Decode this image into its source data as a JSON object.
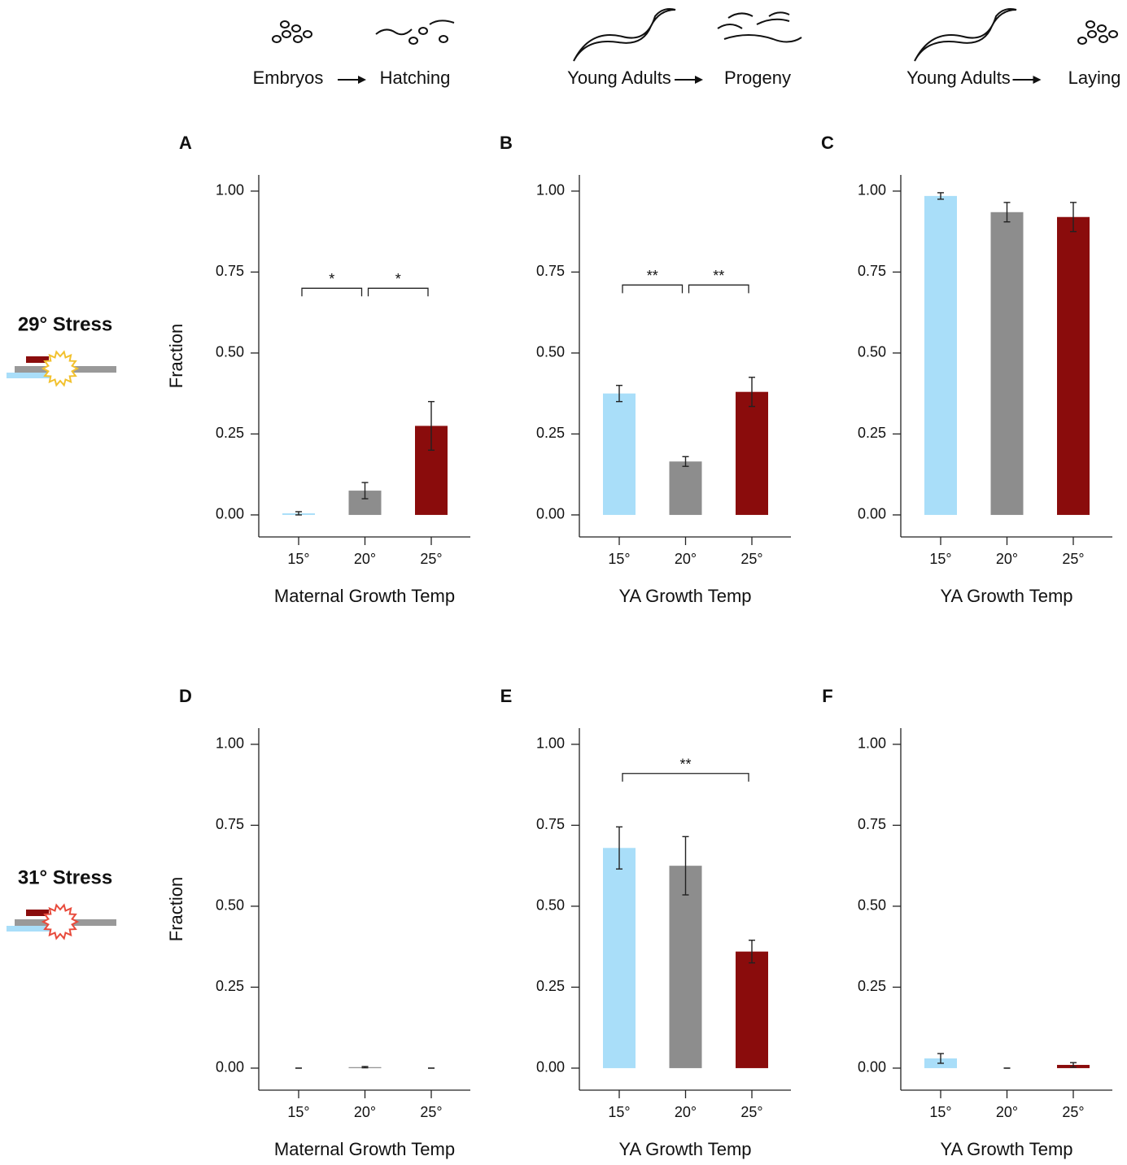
{
  "header": [
    {
      "from": "Embryos",
      "to": "Hatching"
    },
    {
      "from": "Young Adults",
      "to": "Progeny"
    },
    {
      "from": "Young Adults",
      "to": "Laying"
    }
  ],
  "rows": [
    {
      "label": "29° Stress"
    },
    {
      "label": "31° Stress"
    }
  ],
  "chart_data": [
    {
      "type": "bar",
      "title": "A",
      "categories": [
        "15°",
        "20°",
        "25°"
      ],
      "values": [
        0.005,
        0.075,
        0.275
      ],
      "errors": [
        0.005,
        0.025,
        0.075
      ],
      "colors": [
        "#a9def9",
        "#8d8d8d",
        "#8a0c0c"
      ],
      "ylim": [
        -0.068,
        1.05
      ],
      "yticks": [
        {
          "value": 0,
          "label": "0.00"
        },
        {
          "value": 0.25,
          "label": "0.25"
        },
        {
          "value": 0.5,
          "label": "0.50"
        },
        {
          "value": 0.75,
          "label": "0.75"
        },
        {
          "value": 1,
          "label": "1.00"
        }
      ],
      "y_label": "Fraction",
      "x_label": "Maternal Growth Temp",
      "annotations": [
        {
          "label": "*",
          "from": 0,
          "to": 1,
          "y": 0.7
        },
        {
          "label": "*",
          "from": 1,
          "to": 2,
          "y": 0.7
        }
      ]
    },
    {
      "type": "bar",
      "title": "B",
      "categories": [
        "15°",
        "20°",
        "25°"
      ],
      "values": [
        0.375,
        0.165,
        0.38
      ],
      "errors": [
        0.025,
        0.015,
        0.045
      ],
      "colors": [
        "#a9def9",
        "#8d8d8d",
        "#8a0c0c"
      ],
      "ylim": [
        -0.068,
        1.05
      ],
      "yticks": [
        {
          "value": 0,
          "label": "0.00"
        },
        {
          "value": 0.25,
          "label": "0.25"
        },
        {
          "value": 0.5,
          "label": "0.50"
        },
        {
          "value": 0.75,
          "label": "0.75"
        },
        {
          "value": 1,
          "label": "1.00"
        }
      ],
      "x_label": "YA Growth Temp",
      "annotations": [
        {
          "label": "**",
          "from": 0,
          "to": 1,
          "y": 0.71
        },
        {
          "label": "**",
          "from": 1,
          "to": 2,
          "y": 0.71
        }
      ]
    },
    {
      "type": "bar",
      "title": "C",
      "categories": [
        "15°",
        "20°",
        "25°"
      ],
      "values": [
        0.985,
        0.935,
        0.92
      ],
      "errors": [
        0.01,
        0.03,
        0.045
      ],
      "colors": [
        "#a9def9",
        "#8d8d8d",
        "#8a0c0c"
      ],
      "ylim": [
        -0.068,
        1.05
      ],
      "yticks": [
        {
          "value": 0,
          "label": "0.00"
        },
        {
          "value": 0.25,
          "label": "0.25"
        },
        {
          "value": 0.5,
          "label": "0.50"
        },
        {
          "value": 0.75,
          "label": "0.75"
        },
        {
          "value": 1,
          "label": "1.00"
        }
      ],
      "x_label": "YA Growth Temp"
    },
    {
      "type": "bar",
      "title": "D",
      "categories": [
        "15°",
        "20°",
        "25°"
      ],
      "values": [
        0,
        0.003,
        0
      ],
      "errors": [
        0,
        0.002,
        0
      ],
      "colors": [
        "#a9def9",
        "#8d8d8d",
        "#8a0c0c"
      ],
      "ylim": [
        -0.068,
        1.05
      ],
      "yticks": [
        {
          "value": 0,
          "label": "0.00"
        },
        {
          "value": 0.25,
          "label": "0.25"
        },
        {
          "value": 0.5,
          "label": "0.50"
        },
        {
          "value": 0.75,
          "label": "0.75"
        },
        {
          "value": 1,
          "label": "1.00"
        }
      ],
      "y_label": "Fraction",
      "x_label": "Maternal Growth Temp"
    },
    {
      "type": "bar",
      "title": "E",
      "categories": [
        "15°",
        "20°",
        "25°"
      ],
      "values": [
        0.68,
        0.625,
        0.36
      ],
      "errors": [
        0.065,
        0.09,
        0.035
      ],
      "colors": [
        "#a9def9",
        "#8d8d8d",
        "#8a0c0c"
      ],
      "ylim": [
        -0.068,
        1.05
      ],
      "yticks": [
        {
          "value": 0,
          "label": "0.00"
        },
        {
          "value": 0.25,
          "label": "0.25"
        },
        {
          "value": 0.5,
          "label": "0.50"
        },
        {
          "value": 0.75,
          "label": "0.75"
        },
        {
          "value": 1,
          "label": "1.00"
        }
      ],
      "x_label": "YA Growth Temp",
      "annotations": [
        {
          "label": "**",
          "from": 0,
          "to": 2,
          "y": 0.91
        }
      ]
    },
    {
      "type": "bar",
      "title": "F",
      "categories": [
        "15°",
        "20°",
        "25°"
      ],
      "values": [
        0.03,
        0,
        0.01
      ],
      "errors": [
        0.015,
        0,
        0.007
      ],
      "colors": [
        "#a9def9",
        "#8d8d8d",
        "#8a0c0c"
      ],
      "ylim": [
        -0.068,
        1.05
      ],
      "yticks": [
        {
          "value": 0,
          "label": "0.00"
        },
        {
          "value": 0.25,
          "label": "0.25"
        },
        {
          "value": 0.5,
          "label": "0.50"
        },
        {
          "value": 0.75,
          "label": "0.75"
        },
        {
          "value": 1,
          "label": "1.00"
        }
      ],
      "x_label": "YA Growth Temp"
    }
  ]
}
